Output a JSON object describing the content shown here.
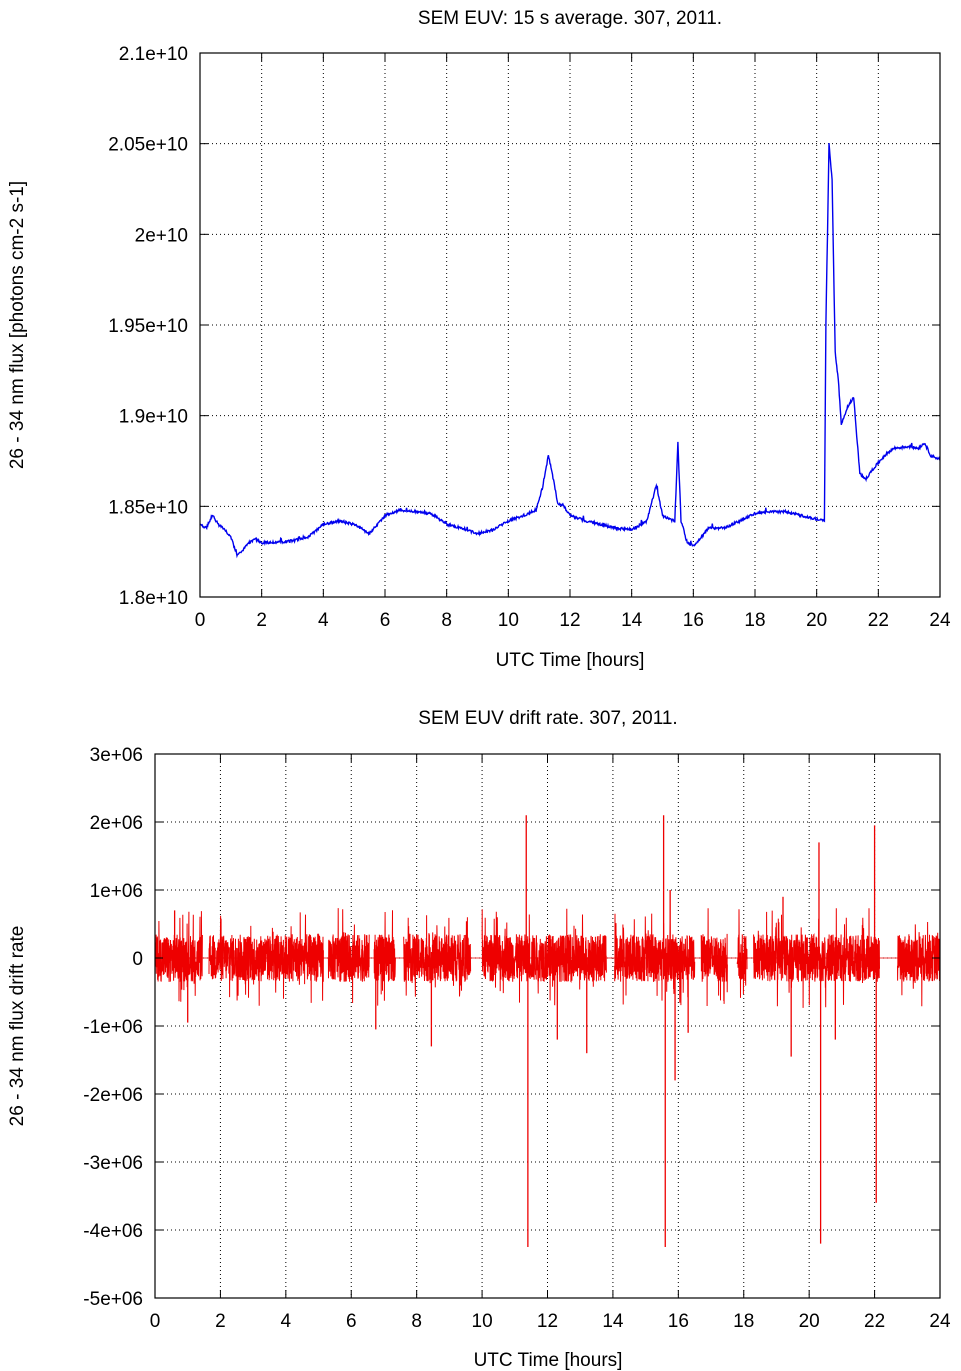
{
  "chart_data": [
    {
      "type": "line",
      "title": "SEM EUV: 15 s average. 307, 2011.",
      "xlabel": "UTC Time [hours]",
      "ylabel": "26 - 34 nm flux [photons cm-2 s-1]",
      "xlim": [
        0,
        24
      ],
      "ylim": [
        18000000000,
        21000000000
      ],
      "xticks": [
        0,
        2,
        4,
        6,
        8,
        10,
        12,
        14,
        16,
        18,
        20,
        22,
        24
      ],
      "xtick_labels": [
        "0",
        "2",
        "4",
        "6",
        "8",
        "10",
        "12",
        "14",
        "16",
        "18",
        "20",
        "22",
        "24"
      ],
      "yticks": [
        18000000000,
        18500000000,
        19000000000,
        19500000000,
        20000000000,
        20500000000,
        21000000000
      ],
      "ytick_labels": [
        "1.8e+10",
        "1.85e+10",
        "1.9e+10",
        "1.95e+10",
        "2e+10",
        "2.05e+10",
        "2.1e+10"
      ],
      "grid": true,
      "color": "#0000ee",
      "series": [
        {
          "x": [
            0.0,
            0.2,
            0.4,
            0.6,
            0.8,
            1.0,
            1.2,
            1.4,
            1.6,
            1.8,
            2.0,
            2.5,
            3.0,
            3.5,
            4.0,
            4.5,
            5.0,
            5.5,
            6.0,
            6.5,
            7.0,
            7.5,
            8.0,
            8.5,
            9.0,
            9.5,
            10.0,
            10.5,
            10.9,
            11.1,
            11.3,
            11.4,
            11.6,
            11.8,
            12.0,
            12.5,
            13.0,
            13.5,
            14.0,
            14.5,
            14.8,
            15.0,
            15.2,
            15.4,
            15.5,
            15.6,
            15.8,
            16.0,
            16.2,
            16.5,
            17.0,
            17.5,
            18.0,
            18.5,
            19.0,
            19.5,
            20.0,
            20.25,
            20.3,
            20.4,
            20.5,
            20.6,
            20.7,
            20.8,
            21.0,
            21.2,
            21.4,
            21.6,
            21.8,
            22.0,
            22.2,
            22.5,
            23.0,
            23.3,
            23.5,
            23.7,
            24.0
          ],
          "y": [
            18400000000,
            18380000000,
            18450000000,
            18400000000,
            18370000000,
            18330000000,
            18230000000,
            18260000000,
            18300000000,
            18320000000,
            18300000000,
            18300000000,
            18310000000,
            18330000000,
            18400000000,
            18420000000,
            18400000000,
            18350000000,
            18450000000,
            18480000000,
            18470000000,
            18460000000,
            18400000000,
            18380000000,
            18350000000,
            18370000000,
            18420000000,
            18450000000,
            18480000000,
            18600000000,
            18780000000,
            18700000000,
            18520000000,
            18500000000,
            18450000000,
            18420000000,
            18400000000,
            18380000000,
            18370000000,
            18420000000,
            18620000000,
            18450000000,
            18430000000,
            18420000000,
            18850000000,
            18420000000,
            18300000000,
            18280000000,
            18320000000,
            18380000000,
            18380000000,
            18420000000,
            18460000000,
            18470000000,
            18470000000,
            18450000000,
            18430000000,
            18420000000,
            19500000000,
            20500000000,
            20300000000,
            19350000000,
            19200000000,
            18950000000,
            19050000000,
            19100000000,
            18680000000,
            18650000000,
            18700000000,
            18740000000,
            18780000000,
            18820000000,
            18830000000,
            18820000000,
            18850000000,
            18780000000,
            18760000000
          ]
        }
      ]
    },
    {
      "type": "line",
      "title": "SEM EUV drift rate. 307, 2011.",
      "xlabel": "UTC Time [hours]",
      "ylabel": "26 - 34 nm flux drift rate",
      "xlim": [
        0,
        24
      ],
      "ylim": [
        -5000000,
        3000000
      ],
      "xticks": [
        0,
        2,
        4,
        6,
        8,
        10,
        12,
        14,
        16,
        18,
        20,
        22,
        24
      ],
      "xtick_labels": [
        "0",
        "2",
        "4",
        "6",
        "8",
        "10",
        "12",
        "14",
        "16",
        "18",
        "20",
        "22",
        "24"
      ],
      "yticks": [
        -5000000,
        -4000000,
        -3000000,
        -2000000,
        -1000000,
        0,
        1000000,
        2000000,
        3000000
      ],
      "ytick_labels": [
        "-5e+06",
        "-4e+06",
        "-3e+06",
        "-2e+06",
        "-1e+06",
        "0",
        "1e+06",
        "2e+06",
        "3e+06"
      ],
      "grid": true,
      "color": "#ee0000",
      "noise_amplitude": 350000,
      "segments": [
        [
          0.0,
          1.45
        ],
        [
          1.65,
          5.15
        ],
        [
          5.3,
          6.55
        ],
        [
          6.7,
          7.35
        ],
        [
          7.6,
          9.65
        ],
        [
          10.0,
          13.8
        ],
        [
          14.05,
          16.5
        ],
        [
          16.7,
          17.5
        ],
        [
          17.8,
          18.1
        ],
        [
          18.3,
          22.15
        ],
        [
          22.7,
          24.0
        ]
      ],
      "spikes": [
        {
          "x": 11.35,
          "y": 2100000
        },
        {
          "x": 11.4,
          "y": -4250000
        },
        {
          "x": 15.55,
          "y": 2100000
        },
        {
          "x": 15.6,
          "y": -4250000
        },
        {
          "x": 20.3,
          "y": 1700000
        },
        {
          "x": 20.35,
          "y": -4200000
        },
        {
          "x": 22.0,
          "y": 1950000
        },
        {
          "x": 22.05,
          "y": -3600000
        },
        {
          "x": 8.45,
          "y": -1300000
        },
        {
          "x": 13.2,
          "y": -1400000
        },
        {
          "x": 15.9,
          "y": -1800000
        },
        {
          "x": 15.75,
          "y": 1000000
        },
        {
          "x": 0.6,
          "y": 700000
        },
        {
          "x": 1.0,
          "y": -950000
        },
        {
          "x": 6.75,
          "y": -1050000
        },
        {
          "x": 12.3,
          "y": -1200000
        },
        {
          "x": 19.45,
          "y": -1450000
        },
        {
          "x": 16.3,
          "y": -1100000
        },
        {
          "x": 20.8,
          "y": -1200000
        },
        {
          "x": 19.2,
          "y": 900000
        }
      ]
    }
  ]
}
